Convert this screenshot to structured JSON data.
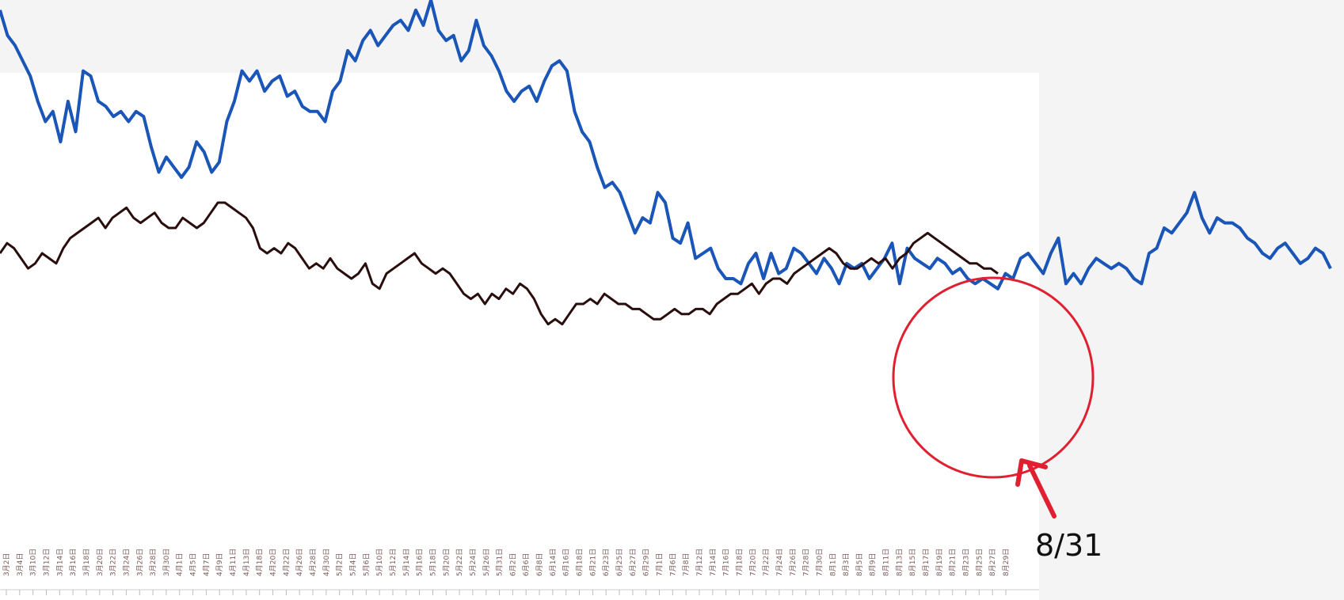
{
  "chart_data": {
    "type": "line",
    "title": "",
    "xlabel": "",
    "ylabel": "",
    "grid": false,
    "x_ticks": [
      "3月2日",
      "3月4日",
      "3月10日",
      "3月12日",
      "3月14日",
      "3月16日",
      "3月18日",
      "3月20日",
      "3月22日",
      "3月24日",
      "3月26日",
      "3月28日",
      "3月30日",
      "4月1日",
      "4月5日",
      "4月7日",
      "4月9日",
      "4月11日",
      "4月13日",
      "4月18日",
      "4月20日",
      "4月22日",
      "4月26日",
      "4月28日",
      "4月30日",
      "5月2日",
      "5月4日",
      "5月6日",
      "5月10日",
      "5月12日",
      "5月14日",
      "5月16日",
      "5月18日",
      "5月20日",
      "5月22日",
      "5月24日",
      "5月26日",
      "5月31日",
      "6月2日",
      "6月6日",
      "6月8日",
      "6月14日",
      "6月16日",
      "6月18日",
      "6月21日",
      "6月23日",
      "6月25日",
      "6月27日",
      "6月29日",
      "7月1日",
      "7月6日",
      "7月8日",
      "7月12日",
      "7月14日",
      "7月16日",
      "7月18日",
      "7月20日",
      "7月22日",
      "7月24日",
      "7月26日",
      "7月28日",
      "7月30日",
      "8月1日",
      "8月3日",
      "8月5日",
      "8月9日",
      "8月11日",
      "8月13日",
      "8月15日",
      "8月17日",
      "8月19日",
      "8月21日",
      "8月23日",
      "8月25日",
      "8月27日",
      "8月29日"
    ],
    "series": [
      {
        "color": "#1a55b8",
        "values": [
          98,
          93,
          91,
          88,
          85,
          80,
          76,
          78,
          72,
          80,
          74,
          86,
          85,
          80,
          79,
          77,
          78,
          76,
          78,
          77,
          71,
          66,
          69,
          67,
          65,
          67,
          72,
          70,
          66,
          68,
          76,
          80,
          86,
          84,
          86,
          82,
          84,
          85,
          81,
          82,
          79,
          78,
          78,
          76,
          82,
          84,
          90,
          88,
          92,
          94,
          91,
          93,
          95,
          96,
          94,
          98,
          95,
          100,
          94,
          92,
          93,
          88,
          90,
          96,
          91,
          89,
          86,
          82,
          80,
          82,
          83,
          80,
          84,
          87,
          88,
          86,
          78,
          74,
          72,
          67,
          63,
          64,
          62,
          58,
          54,
          57,
          56,
          62,
          60,
          53,
          52,
          56,
          49,
          50,
          51,
          47,
          45,
          45,
          44,
          48,
          50,
          45,
          50,
          46,
          47,
          51,
          50,
          48,
          46,
          49,
          47,
          44,
          48,
          47,
          48,
          45,
          47,
          49,
          52,
          44,
          51,
          49,
          48,
          47,
          49,
          48,
          46,
          47,
          45,
          44,
          45,
          44,
          43,
          46,
          45,
          49,
          50,
          48,
          46,
          50,
          53,
          44,
          46,
          44,
          47,
          49,
          48,
          47,
          48,
          47,
          45,
          44,
          50,
          51,
          55,
          54,
          56,
          58,
          62,
          57,
          54,
          57,
          56,
          56,
          55,
          53,
          52,
          50,
          49,
          51,
          52,
          50,
          48,
          49,
          51,
          50,
          47
        ]
      },
      {
        "color": "#2a0d0d",
        "values": [
          50,
          52,
          51,
          49,
          47,
          48,
          50,
          49,
          48,
          51,
          53,
          54,
          55,
          56,
          57,
          55,
          57,
          58,
          59,
          57,
          56,
          57,
          58,
          56,
          55,
          55,
          57,
          56,
          55,
          56,
          58,
          60,
          60,
          59,
          58,
          57,
          55,
          51,
          50,
          51,
          50,
          52,
          51,
          49,
          47,
          48,
          47,
          49,
          47,
          46,
          45,
          46,
          48,
          44,
          43,
          46,
          47,
          48,
          49,
          50,
          48,
          47,
          46,
          47,
          46,
          44,
          42,
          41,
          42,
          40,
          42,
          41,
          43,
          42,
          44,
          43,
          41,
          38,
          36,
          37,
          36,
          38,
          40,
          40,
          41,
          40,
          42,
          41,
          40,
          40,
          39,
          39,
          38,
          37,
          37,
          38,
          39,
          38,
          38,
          39,
          39,
          38,
          40,
          41,
          42,
          42,
          43,
          44,
          42,
          44,
          45,
          45,
          44,
          46,
          47,
          48,
          49,
          50,
          51,
          50,
          48,
          47,
          47,
          48,
          49,
          48,
          49,
          47,
          49,
          50,
          52,
          53,
          54,
          53,
          52,
          51,
          50,
          49,
          48,
          48,
          47,
          47,
          46
        ]
      }
    ]
  },
  "annotation": {
    "label": "8/31",
    "color": "#e02030"
  }
}
